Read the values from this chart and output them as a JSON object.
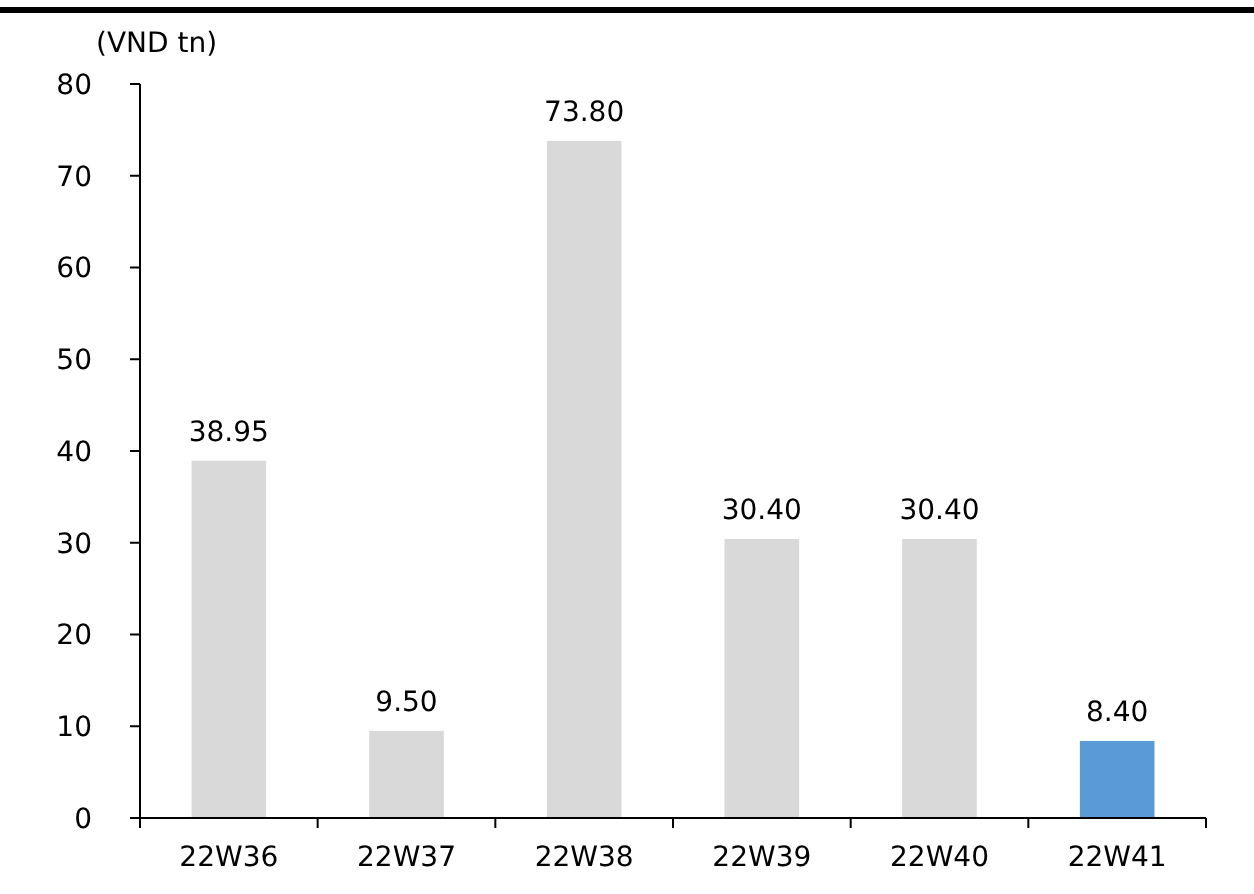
{
  "chart_data": {
    "type": "bar",
    "ylabel": "(VND tn)",
    "categories": [
      "22W36",
      "22W37",
      "22W38",
      "22W39",
      "22W40",
      "22W41"
    ],
    "values": [
      38.95,
      9.5,
      73.8,
      30.4,
      30.4,
      8.4
    ],
    "colors": [
      "#d9d9d9",
      "#d9d9d9",
      "#d9d9d9",
      "#d9d9d9",
      "#d9d9d9",
      "#5b9bd5"
    ],
    "value_labels": [
      "38.95",
      "9.50",
      "73.80",
      "30.40",
      "30.40",
      "8.40"
    ],
    "ylim": [
      0,
      80
    ],
    "yticks": [
      0,
      10,
      20,
      30,
      40,
      50,
      60,
      70,
      80
    ],
    "grid": false
  }
}
